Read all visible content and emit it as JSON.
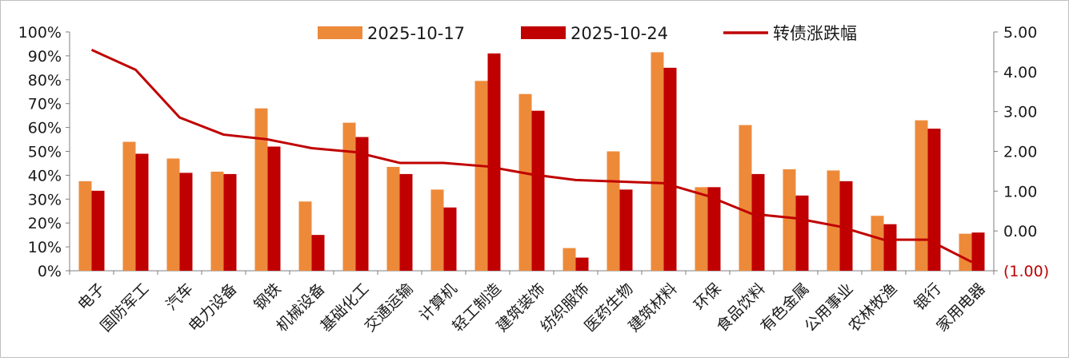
{
  "chart_data": {
    "type": "bar",
    "categories": [
      "电子",
      "国防军工",
      "汽车",
      "电力设备",
      "钢铁",
      "机械设备",
      "基础化工",
      "交通运输",
      "计算机",
      "轻工制造",
      "建筑装饰",
      "纺织服饰",
      "医药生物",
      "建筑材料",
      "环保",
      "食品饮料",
      "有色金属",
      "公用事业",
      "农林牧渔",
      "银行",
      "家用电器"
    ],
    "series": [
      {
        "name": "2025-10-17",
        "type": "bar",
        "axis": "left",
        "color": "#ED8A3A",
        "values": [
          37.5,
          54,
          47,
          41.5,
          68,
          29,
          62,
          43.5,
          34,
          79.5,
          74,
          9.5,
          50,
          91.5,
          35,
          61,
          42.5,
          42,
          23,
          63,
          15.5
        ]
      },
      {
        "name": "2025-10-24",
        "type": "bar",
        "axis": "left",
        "color": "#C00000",
        "values": [
          33.5,
          49,
          41,
          40.5,
          52,
          15,
          56,
          40.5,
          26.5,
          91,
          67,
          5.5,
          34,
          85,
          35,
          40.5,
          31.5,
          37.5,
          19.5,
          59.5,
          16
        ]
      },
      {
        "name": "转债涨跌幅",
        "type": "line",
        "axis": "right",
        "color": "#C00000",
        "values": [
          4.55,
          4.05,
          2.85,
          2.42,
          2.3,
          2.08,
          1.98,
          1.71,
          1.71,
          1.62,
          1.42,
          1.28,
          1.24,
          1.2,
          0.88,
          0.43,
          0.32,
          0.11,
          -0.22,
          -0.22,
          -0.78
        ]
      }
    ],
    "left_axis": {
      "ylim": [
        0,
        100
      ],
      "ticks": [
        "0%",
        "10%",
        "20%",
        "30%",
        "40%",
        "50%",
        "60%",
        "70%",
        "80%",
        "90%",
        "100%"
      ]
    },
    "right_axis": {
      "ylim": [
        -1,
        5
      ],
      "ticks": [
        "(1.00)",
        "0.00",
        "1.00",
        "2.00",
        "3.00",
        "4.00",
        "5.00"
      ]
    },
    "legend": {
      "position": "top-center"
    },
    "grid": false
  }
}
